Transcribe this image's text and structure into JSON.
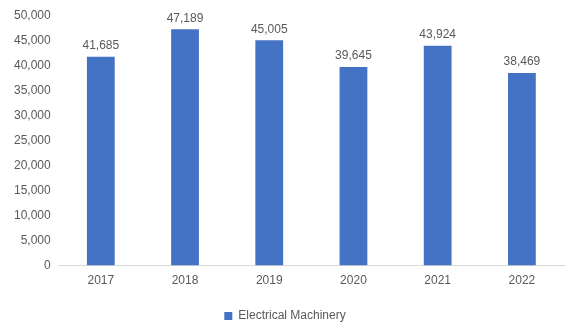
{
  "chart_data": {
    "type": "bar",
    "categories": [
      "2017",
      "2018",
      "2019",
      "2020",
      "2021",
      "2022"
    ],
    "series": [
      {
        "name": "Electrical Machinery",
        "color": "#4472c4",
        "values": [
          41685,
          47189,
          45005,
          39645,
          43924,
          38469
        ],
        "value_labels": [
          "41,685",
          "47,189",
          "45,005",
          "39,645",
          "43,924",
          "38,469"
        ]
      }
    ],
    "ylim": [
      0,
      50000
    ],
    "yticks": [
      0,
      {
        "value": 5000,
        "label": "5,000"
      },
      {
        "value": 10000,
        "label": "10,000"
      },
      {
        "value": 15000,
        "label": "15,000"
      },
      {
        "value": 20000,
        "label": "20,000"
      },
      {
        "value": 25000,
        "label": "25,000"
      },
      {
        "value": 30000,
        "label": "30,000"
      },
      {
        "value": 35000,
        "label": "35,000"
      },
      {
        "value": 40000,
        "label": "40,000"
      },
      {
        "value": 45000,
        "label": "45,000"
      },
      {
        "value": 50000,
        "label": "50,000"
      }
    ],
    "grid": false,
    "legend": "bottom",
    "data_labels": true
  }
}
